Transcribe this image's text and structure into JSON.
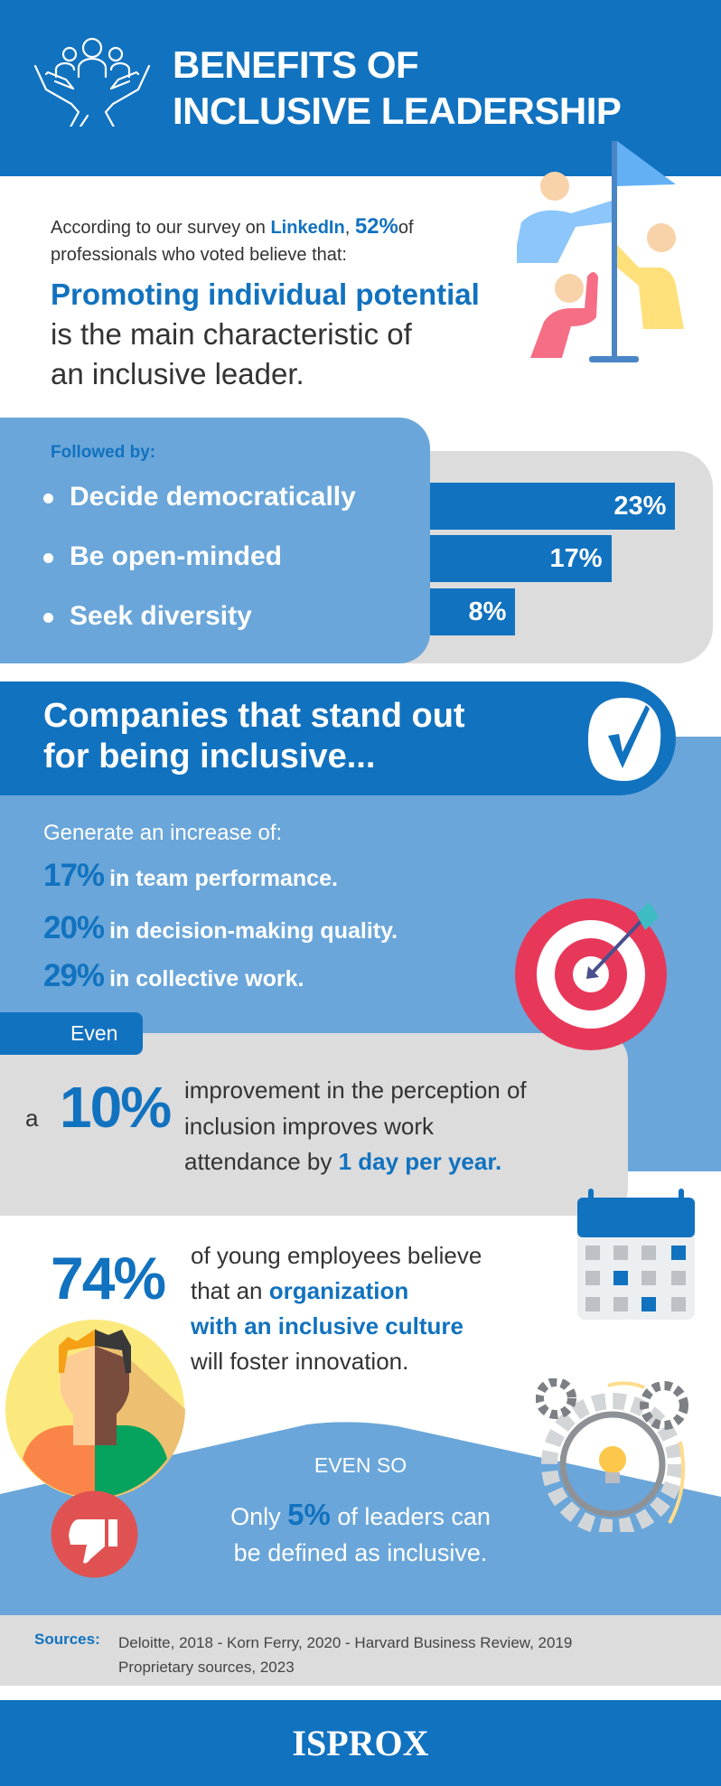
{
  "header": {
    "title_line1": "BENEFITS OF",
    "title_line2": "INCLUSIVE LEADERSHIP",
    "icon": "hands-holding-people-icon"
  },
  "survey": {
    "pre": "According to our survey on ",
    "platform": "LinkedIn",
    "mid": ", ",
    "percent": "52%",
    "post": "of",
    "line2": "professionals who voted believe that:",
    "highlight": "Promoting individual potential",
    "rest_line1": "is the main characteristic of",
    "rest_line2": "an inclusive leader."
  },
  "followed": {
    "label": "Followed by:",
    "items": [
      {
        "label": "Decide democratically",
        "value": 23,
        "value_label": "23%"
      },
      {
        "label": "Be open-minded",
        "value": 17,
        "value_label": "17%"
      },
      {
        "label": "Seek diversity",
        "value": 8,
        "value_label": "8%"
      }
    ]
  },
  "companies": {
    "title_line1": "Companies that stand out",
    "title_line2": "for being inclusive...",
    "intro": "Generate an increase of:",
    "stats": [
      {
        "percent": "17%",
        "text": "in team performance."
      },
      {
        "percent": "20%",
        "text": "in decision-making quality."
      },
      {
        "percent": "29%",
        "text": "in collective work."
      }
    ]
  },
  "even": {
    "tab": "Even",
    "a": "a",
    "percent": "10%",
    "line1": "improvement in the perception of",
    "line2": "inclusion improves work",
    "line3_pre": "attendance by ",
    "line3_highlight": "1 day per year."
  },
  "young": {
    "percent": "74%",
    "line1": "of young employees believe",
    "line2_pre": "that an ",
    "line2_highlight": "organization",
    "line3": "with an inclusive culture",
    "line4": "will foster innovation."
  },
  "only": {
    "label": "EVEN SO",
    "pre": "Only ",
    "percent": "5%",
    "post": " of leaders can",
    "line2": "be defined as inclusive."
  },
  "sources": {
    "label": "Sources:",
    "line1": "Deloitte, 2018 - Korn Ferry, 2020 - Harvard Business Review, 2019",
    "line2": "Proprietary sources, 2023"
  },
  "footer": {
    "logo": "ISPROX"
  },
  "colors": {
    "blue": "#1172bf",
    "light_blue": "#6aa6d9",
    "grey": "#dcdcdc",
    "red": "#e8385a"
  }
}
